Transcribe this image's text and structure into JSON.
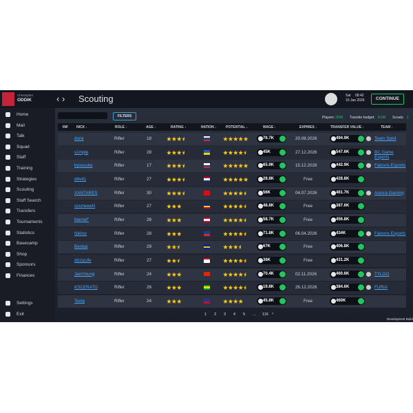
{
  "header": {
    "first_name": "Christopher",
    "last_name": "ODDIK",
    "title": "Scouting",
    "day": "Sat",
    "time": "08:42",
    "date": "10 Jan 2026",
    "continue": "CONTINUE"
  },
  "sidebar": [
    "Home",
    "Mail",
    "Talk",
    "Squad",
    "Staff",
    "Training",
    "Strategies",
    "Scouting",
    "Staff Search",
    "Transfers",
    "Tournaments",
    "Statistics",
    "Basecamp",
    "Shop",
    "Sponsors",
    "Finances"
  ],
  "sidebar_bottom": [
    "Settings",
    "Exit"
  ],
  "toolbar": {
    "filters": "FILTERS",
    "players_label": "Players:",
    "players": "1508",
    "budget_label": "Transfer budget:",
    "budget": "8.5M",
    "scouts_label": "Scouts:",
    "scouts": "1"
  },
  "table": {
    "columns": [
      "INF",
      "NICK ↓",
      "ROLE ↓",
      "AGE ↓",
      "RATING ↓",
      "NATION ↓",
      "POTENTIAL ↓",
      "WAGE ↓",
      "EXPIRES ↓",
      "TRANSFER VALUE ↓",
      "TEAM ↓"
    ],
    "rows": [
      {
        "nick": "donk",
        "role": "Rifler",
        "age": "18",
        "rating": 3.5,
        "flag": [
          "#fff",
          "#1c3f94",
          "#d52b1e"
        ],
        "potential": 5,
        "wage": "76.7K",
        "expires": "20.08.2026",
        "value": "494.9K",
        "team": "Team Spirit"
      },
      {
        "nick": "s1mple",
        "role": "Rifler",
        "age": "28",
        "rating": 3.5,
        "flag": [
          "#1d5fbf",
          "#1d5fbf",
          "#f5d000"
        ],
        "potential": 4.5,
        "wage": "45K",
        "expires": "27.12.2026",
        "value": "547.6K",
        "team": "BC.Game Esports"
      },
      {
        "nick": "kyousuke",
        "role": "Rifler",
        "age": "17",
        "rating": 3.5,
        "flag": [
          "#fff",
          "#1c3f94",
          "#d52b1e"
        ],
        "potential": 5,
        "wage": "65.9K",
        "expires": "15.12.2026",
        "value": "442.9K",
        "team": "Falcons Esports"
      },
      {
        "nick": "d4v41",
        "role": "Rifler",
        "age": "27",
        "rating": 3.5,
        "flag": [
          "#c8102e",
          "#fff",
          "#1a3c8f"
        ],
        "potential": 5,
        "wage": "28.8K",
        "expires": "Free",
        "value": "428.8K",
        "team": null
      },
      {
        "nick": "XANTARES",
        "role": "Rifler",
        "age": "30",
        "rating": 3.5,
        "flag": [
          "#e30a17",
          "#e30a17",
          "#e30a17"
        ],
        "potential": 4.5,
        "wage": "56K",
        "expires": "04.07.2026",
        "value": "481.7K",
        "team": "Aurora Gaming"
      },
      {
        "nick": "cosmeeeN",
        "role": "Rifler",
        "age": "27",
        "rating": 3,
        "flag": [
          "#002b7f",
          "#fcd116",
          "#ce1126"
        ],
        "potential": 4.5,
        "wage": "48.8K",
        "expires": "Free",
        "value": "387.6K",
        "team": null
      },
      {
        "nick": "blameF",
        "role": "Rifler",
        "age": "28",
        "rating": 3,
        "flag": [
          "#c8102e",
          "#fff",
          "#c8102e"
        ],
        "potential": 4.5,
        "wage": "58.7K",
        "expires": "Free",
        "value": "456.8K",
        "team": null
      },
      {
        "nick": "Nikhor",
        "role": "Rifler",
        "age": "28",
        "rating": 3,
        "flag": [
          "#1c3f94",
          "#1c3f94",
          "#d52b1e"
        ],
        "potential": 4.5,
        "wage": "71.8K",
        "expires": "06.04.2026",
        "value": "434K",
        "team": "Falcons Esports"
      },
      {
        "nick": "Benkai",
        "role": "Rifler",
        "age": "29",
        "rating": 2.5,
        "flag": [
          "#002395",
          "#fecb00",
          "#002395"
        ],
        "potential": 3.5,
        "wage": "67K",
        "expires": "Free",
        "value": "406.8K",
        "team": null
      },
      {
        "nick": "dizzyLife",
        "role": "Rifler",
        "age": "27",
        "rating": 2.5,
        "flag": [
          "#ce1126",
          "#fff",
          "#fff"
        ],
        "potential": 4.5,
        "wage": "36K",
        "expires": "Free",
        "value": "431.2K",
        "team": null
      },
      {
        "nick": "JamYoung",
        "role": "Rifler",
        "age": "24",
        "rating": 3,
        "flag": [
          "#de2910",
          "#de2910",
          "#de2910"
        ],
        "potential": 4.5,
        "wage": "70.4K",
        "expires": "02.11.2026",
        "value": "460.6K",
        "team": "TYLOO"
      },
      {
        "nick": "KSCERATO",
        "role": "Rifler",
        "age": "26",
        "rating": 3,
        "flag": [
          "#009c3b",
          "#ffdf00",
          "#009c3b"
        ],
        "potential": 4.5,
        "wage": "19.8K",
        "expires": "26.12.2026",
        "value": "384.6K",
        "team": "FURIA"
      },
      {
        "nick": "Texta",
        "role": "Rifler",
        "age": "24",
        "rating": 3,
        "flag": [
          "#1a3c8f",
          "#1a3c8f",
          "#c8102e"
        ],
        "potential": 4,
        "wage": "45.8K",
        "expires": "Free",
        "value": "460K",
        "team": null
      }
    ]
  },
  "pagination": [
    "1",
    "2",
    "3",
    "4",
    "5",
    "...",
    "116"
  ],
  "footer": "Development Build"
}
